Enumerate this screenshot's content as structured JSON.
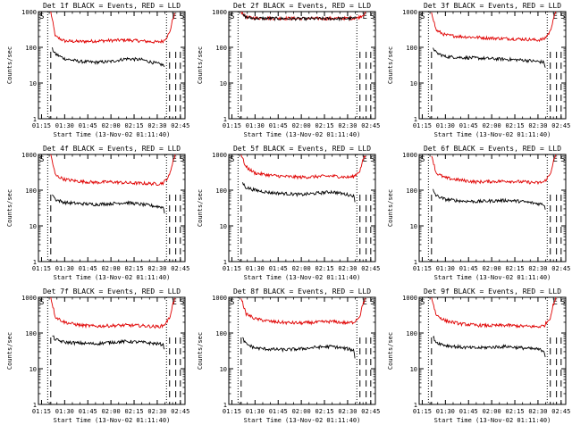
{
  "chart_data": [
    {
      "type": "line",
      "title": "Det 1f BLACK = Events, RED = LLD",
      "xlabel": "Start Time (13-Nov-02 01:11:40)",
      "ylabel": "Counts/sec",
      "yscale": "log",
      "ylim": [
        1,
        1000
      ],
      "xlim": [
        "01:13",
        "02:48"
      ],
      "x_ticks": [
        "01:15",
        "01:30",
        "01:45",
        "02:00",
        "02:15",
        "02:30",
        "02:45"
      ],
      "y_ticks": [
        "1",
        "10",
        "100",
        "1000"
      ],
      "markers": {
        "dotted": [
          "01:19",
          "02:36"
        ],
        "dashed": [
          "01:21",
          "02:38",
          "02:42",
          "02:45"
        ],
        "letters": [
          {
            "text": "S",
            "at": "01:13"
          },
          {
            "text": "E",
            "at": "02:39"
          },
          {
            "text": "S",
            "at": "02:44"
          }
        ]
      },
      "series": [
        {
          "name": "LLD",
          "color": "#e00000",
          "x": [
            "01:21",
            "01:24",
            "01:30",
            "01:40",
            "01:50",
            "02:00",
            "02:10",
            "02:20",
            "02:30",
            "02:34",
            "02:38",
            "02:40",
            "02:42"
          ],
          "values": [
            1000,
            200,
            150,
            145,
            150,
            155,
            160,
            150,
            140,
            150,
            250,
            600,
            1000
          ]
        },
        {
          "name": "Events",
          "color": "#000000",
          "x": [
            "01:22",
            "01:24",
            "01:30",
            "01:40",
            "01:50",
            "02:00",
            "02:10",
            "02:20",
            "02:30",
            "02:34",
            "02:35"
          ],
          "values": [
            90,
            65,
            48,
            40,
            38,
            40,
            48,
            45,
            35,
            32,
            25
          ]
        }
      ]
    },
    {
      "type": "line",
      "title": "Det 2f BLACK = Events, RED = LLD",
      "xlabel": "Start Time (13-Nov-02 01:11:40)",
      "ylabel": "Counts/sec",
      "yscale": "log",
      "ylim": [
        1,
        1000
      ],
      "xlim": [
        "01:13",
        "02:48"
      ],
      "x_ticks": [
        "01:15",
        "01:30",
        "01:45",
        "02:00",
        "02:15",
        "02:30",
        "02:45"
      ],
      "y_ticks": [
        "1",
        "10",
        "100",
        "1000"
      ],
      "markers": {
        "dotted": [
          "01:19",
          "02:36"
        ],
        "dashed": [
          "01:21",
          "02:38",
          "02:42",
          "02:45"
        ],
        "letters": [
          {
            "text": "S",
            "at": "01:13"
          },
          {
            "text": "E",
            "at": "02:39"
          },
          {
            "text": "S",
            "at": "02:44"
          }
        ]
      },
      "series": [
        {
          "name": "LLD",
          "color": "#e00000",
          "x": [
            "01:21",
            "01:24",
            "01:30",
            "01:45",
            "02:00",
            "02:15",
            "02:30",
            "02:36",
            "02:40",
            "02:42"
          ],
          "values": [
            1000,
            700,
            660,
            650,
            640,
            640,
            650,
            660,
            800,
            1000
          ]
        },
        {
          "name": "Events",
          "color": "#000000",
          "x": [
            "01:22",
            "01:25",
            "01:30",
            "01:45",
            "02:00",
            "02:15",
            "02:30",
            "02:36"
          ],
          "values": [
            800,
            680,
            650,
            640,
            630,
            635,
            640,
            650
          ]
        }
      ]
    },
    {
      "type": "line",
      "title": "Det 3f BLACK = Events, RED = LLD",
      "xlabel": "Start Time (13-Nov-02 01:11:40)",
      "ylabel": "Counts/sec",
      "yscale": "log",
      "ylim": [
        1,
        1000
      ],
      "xlim": [
        "01:13",
        "02:48"
      ],
      "x_ticks": [
        "01:15",
        "01:30",
        "01:45",
        "02:00",
        "02:15",
        "02:30",
        "02:45"
      ],
      "y_ticks": [
        "1",
        "10",
        "100",
        "1000"
      ],
      "markers": {
        "dotted": [
          "01:19",
          "02:36"
        ],
        "dashed": [
          "01:21",
          "02:38",
          "02:42",
          "02:45"
        ],
        "letters": [
          {
            "text": "S",
            "at": "01:13"
          },
          {
            "text": "E",
            "at": "02:39"
          },
          {
            "text": "S",
            "at": "02:44"
          }
        ]
      },
      "series": [
        {
          "name": "LLD",
          "color": "#e00000",
          "x": [
            "01:21",
            "01:24",
            "01:30",
            "01:40",
            "01:50",
            "02:00",
            "02:10",
            "02:20",
            "02:30",
            "02:34",
            "02:38",
            "02:40",
            "02:42"
          ],
          "values": [
            1000,
            300,
            220,
            200,
            190,
            180,
            175,
            170,
            160,
            170,
            280,
            650,
            1000
          ]
        },
        {
          "name": "Events",
          "color": "#000000",
          "x": [
            "01:22",
            "01:24",
            "01:30",
            "01:40",
            "01:50",
            "02:00",
            "02:10",
            "02:20",
            "02:30",
            "02:34",
            "02:35"
          ],
          "values": [
            100,
            70,
            55,
            52,
            50,
            48,
            46,
            44,
            40,
            38,
            25
          ]
        }
      ]
    },
    {
      "type": "line",
      "title": "Det 4f BLACK = Events, RED = LLD",
      "xlabel": "Start Time (13-Nov-02 01:11:40)",
      "ylabel": "Counts/sec",
      "yscale": "log",
      "ylim": [
        1,
        1000
      ],
      "xlim": [
        "01:13",
        "02:48"
      ],
      "x_ticks": [
        "01:15",
        "01:30",
        "01:45",
        "02:00",
        "02:15",
        "02:30",
        "02:45"
      ],
      "y_ticks": [
        "1",
        "10",
        "100",
        "1000"
      ],
      "markers": {
        "dotted": [
          "01:19",
          "02:36"
        ],
        "dashed": [
          "01:21",
          "02:38",
          "02:42",
          "02:45"
        ],
        "letters": [
          {
            "text": "S",
            "at": "01:13"
          },
          {
            "text": "E",
            "at": "02:39"
          },
          {
            "text": "S",
            "at": "02:44"
          }
        ]
      },
      "series": [
        {
          "name": "LLD",
          "color": "#e00000",
          "x": [
            "01:21",
            "01:24",
            "01:30",
            "01:40",
            "01:50",
            "02:00",
            "02:10",
            "02:20",
            "02:30",
            "02:34",
            "02:38",
            "02:40",
            "02:42"
          ],
          "values": [
            1000,
            260,
            200,
            175,
            165,
            170,
            160,
            155,
            150,
            160,
            260,
            620,
            1000
          ]
        },
        {
          "name": "Events",
          "color": "#000000",
          "x": [
            "01:22",
            "01:24",
            "01:30",
            "01:40",
            "01:50",
            "02:00",
            "02:10",
            "02:20",
            "02:30",
            "02:34",
            "02:35"
          ],
          "values": [
            80,
            55,
            45,
            42,
            40,
            42,
            45,
            40,
            35,
            33,
            22
          ]
        }
      ]
    },
    {
      "type": "line",
      "title": "Det 5f BLACK = Events, RED = LLD",
      "xlabel": "Start Time (13-Nov-02 01:11:40)",
      "ylabel": "Counts/sec",
      "yscale": "log",
      "ylim": [
        1,
        1000
      ],
      "xlim": [
        "01:13",
        "02:48"
      ],
      "x_ticks": [
        "01:15",
        "01:30",
        "01:45",
        "02:00",
        "02:15",
        "02:30",
        "02:45"
      ],
      "y_ticks": [
        "1",
        "10",
        "100",
        "1000"
      ],
      "markers": {
        "dotted": [
          "01:19",
          "02:36"
        ],
        "dashed": [
          "01:21",
          "02:38",
          "02:42",
          "02:45"
        ],
        "letters": [
          {
            "text": "S",
            "at": "01:13"
          },
          {
            "text": "E",
            "at": "02:39"
          },
          {
            "text": "S",
            "at": "02:44"
          }
        ]
      },
      "series": [
        {
          "name": "LLD",
          "color": "#e00000",
          "x": [
            "01:21",
            "01:24",
            "01:30",
            "01:40",
            "01:50",
            "02:00",
            "02:10",
            "02:20",
            "02:30",
            "02:34",
            "02:38",
            "02:40",
            "02:42"
          ],
          "values": [
            1000,
            450,
            300,
            260,
            240,
            230,
            240,
            250,
            230,
            240,
            350,
            700,
            1000
          ]
        },
        {
          "name": "Events",
          "color": "#000000",
          "x": [
            "01:22",
            "01:24",
            "01:30",
            "01:40",
            "01:50",
            "02:00",
            "02:10",
            "02:20",
            "02:30",
            "02:34",
            "02:35"
          ],
          "values": [
            160,
            120,
            100,
            85,
            80,
            75,
            82,
            90,
            75,
            70,
            40
          ]
        }
      ]
    },
    {
      "type": "line",
      "title": "Det 6f BLACK = Events, RED = LLD",
      "xlabel": "Start Time (13-Nov-02 01:11:40)",
      "ylabel": "Counts/sec",
      "yscale": "log",
      "ylim": [
        1,
        1000
      ],
      "xlim": [
        "01:13",
        "02:48"
      ],
      "x_ticks": [
        "01:15",
        "01:30",
        "01:45",
        "02:00",
        "02:15",
        "02:30",
        "02:45"
      ],
      "y_ticks": [
        "1",
        "10",
        "100",
        "1000"
      ],
      "markers": {
        "dotted": [
          "01:19",
          "02:36"
        ],
        "dashed": [
          "01:21",
          "02:38",
          "02:42",
          "02:45"
        ],
        "letters": [
          {
            "text": "S",
            "at": "01:13"
          },
          {
            "text": "E",
            "at": "02:39"
          },
          {
            "text": "S",
            "at": "02:44"
          }
        ]
      },
      "series": [
        {
          "name": "LLD",
          "color": "#e00000",
          "x": [
            "01:21",
            "01:24",
            "01:30",
            "01:40",
            "01:50",
            "02:00",
            "02:10",
            "02:20",
            "02:30",
            "02:34",
            "02:38",
            "02:40",
            "02:42"
          ],
          "values": [
            1000,
            300,
            220,
            190,
            170,
            175,
            180,
            170,
            160,
            170,
            280,
            650,
            1000
          ]
        },
        {
          "name": "Events",
          "color": "#000000",
          "x": [
            "01:22",
            "01:24",
            "01:30",
            "01:40",
            "01:50",
            "02:00",
            "02:10",
            "02:20",
            "02:30",
            "02:34",
            "02:35"
          ],
          "values": [
            100,
            70,
            55,
            50,
            48,
            50,
            52,
            48,
            42,
            40,
            28
          ]
        }
      ]
    },
    {
      "type": "line",
      "title": "Det 7f BLACK = Events, RED = LLD",
      "xlabel": "Start Time (13-Nov-02 01:11:40)",
      "ylabel": "Counts/sec",
      "yscale": "log",
      "ylim": [
        1,
        1000
      ],
      "xlim": [
        "01:13",
        "02:48"
      ],
      "x_ticks": [
        "01:15",
        "01:30",
        "01:45",
        "02:00",
        "02:15",
        "02:30",
        "02:45"
      ],
      "y_ticks": [
        "1",
        "10",
        "100",
        "1000"
      ],
      "markers": {
        "dotted": [
          "01:19",
          "02:36"
        ],
        "dashed": [
          "01:21",
          "02:38",
          "02:42",
          "02:45"
        ],
        "letters": [
          {
            "text": "S",
            "at": "01:13"
          },
          {
            "text": "E",
            "at": "02:39"
          },
          {
            "text": "S",
            "at": "02:44"
          }
        ]
      },
      "series": [
        {
          "name": "LLD",
          "color": "#e00000",
          "x": [
            "01:21",
            "01:24",
            "01:30",
            "01:40",
            "01:50",
            "02:00",
            "02:10",
            "02:20",
            "02:30",
            "02:34",
            "02:38",
            "02:40",
            "02:42"
          ],
          "values": [
            1000,
            280,
            200,
            165,
            155,
            160,
            165,
            160,
            150,
            160,
            260,
            620,
            1000
          ]
        },
        {
          "name": "Events",
          "color": "#000000",
          "x": [
            "01:22",
            "01:24",
            "01:30",
            "01:40",
            "01:50",
            "02:00",
            "02:10",
            "02:20",
            "02:30",
            "02:34",
            "02:35"
          ],
          "values": [
            85,
            65,
            55,
            52,
            50,
            55,
            58,
            55,
            50,
            48,
            28
          ]
        }
      ]
    },
    {
      "type": "line",
      "title": "Det 8f BLACK = Events, RED = LLD",
      "xlabel": "Start Time (13-Nov-02 01:11:40)",
      "ylabel": "Counts/sec",
      "yscale": "log",
      "ylim": [
        1,
        1000
      ],
      "xlim": [
        "01:13",
        "02:48"
      ],
      "x_ticks": [
        "01:15",
        "01:30",
        "01:45",
        "02:00",
        "02:15",
        "02:30",
        "02:45"
      ],
      "y_ticks": [
        "1",
        "10",
        "100",
        "1000"
      ],
      "markers": {
        "dotted": [
          "01:19",
          "02:36"
        ],
        "dashed": [
          "01:21",
          "02:38",
          "02:42",
          "02:45"
        ],
        "letters": [
          {
            "text": "S",
            "at": "01:13"
          },
          {
            "text": "E",
            "at": "02:39"
          },
          {
            "text": "S",
            "at": "02:44"
          }
        ]
      },
      "series": [
        {
          "name": "LLD",
          "color": "#e00000",
          "x": [
            "01:21",
            "01:24",
            "01:30",
            "01:40",
            "01:50",
            "02:00",
            "02:10",
            "02:20",
            "02:30",
            "02:34",
            "02:38",
            "02:40",
            "02:42"
          ],
          "values": [
            1000,
            350,
            250,
            210,
            195,
            190,
            200,
            210,
            190,
            200,
            300,
            680,
            1000
          ]
        },
        {
          "name": "Events",
          "color": "#000000",
          "x": [
            "01:22",
            "01:24",
            "01:30",
            "01:40",
            "01:50",
            "02:00",
            "02:10",
            "02:20",
            "02:30",
            "02:34",
            "02:35"
          ],
          "values": [
            70,
            50,
            38,
            35,
            34,
            36,
            40,
            42,
            36,
            33,
            18
          ]
        }
      ]
    },
    {
      "type": "line",
      "title": "Det 9f BLACK = Events, RED = LLD",
      "xlabel": "Start Time (13-Nov-02 01:11:40)",
      "ylabel": "Counts/sec",
      "yscale": "log",
      "ylim": [
        1,
        1000
      ],
      "xlim": [
        "01:13",
        "02:48"
      ],
      "x_ticks": [
        "01:15",
        "01:30",
        "01:45",
        "02:00",
        "02:15",
        "02:30",
        "02:45"
      ],
      "y_ticks": [
        "1",
        "10",
        "100",
        "1000"
      ],
      "markers": {
        "dotted": [
          "01:19",
          "02:36"
        ],
        "dashed": [
          "01:21",
          "02:38",
          "02:42",
          "02:45"
        ],
        "letters": [
          {
            "text": "S",
            "at": "01:13"
          },
          {
            "text": "E",
            "at": "02:39"
          },
          {
            "text": "S",
            "at": "02:44"
          }
        ]
      },
      "series": [
        {
          "name": "LLD",
          "color": "#e00000",
          "x": [
            "01:21",
            "01:24",
            "01:30",
            "01:40",
            "01:50",
            "02:00",
            "02:10",
            "02:20",
            "02:30",
            "02:34",
            "02:38",
            "02:40",
            "02:42"
          ],
          "values": [
            1000,
            320,
            220,
            180,
            165,
            160,
            165,
            155,
            150,
            160,
            270,
            640,
            1000
          ]
        },
        {
          "name": "Events",
          "color": "#000000",
          "x": [
            "01:22",
            "01:24",
            "01:30",
            "01:40",
            "01:50",
            "02:00",
            "02:10",
            "02:20",
            "02:30",
            "02:34",
            "02:35"
          ],
          "values": [
            80,
            55,
            45,
            40,
            38,
            40,
            42,
            38,
            35,
            32,
            20
          ]
        }
      ]
    }
  ]
}
